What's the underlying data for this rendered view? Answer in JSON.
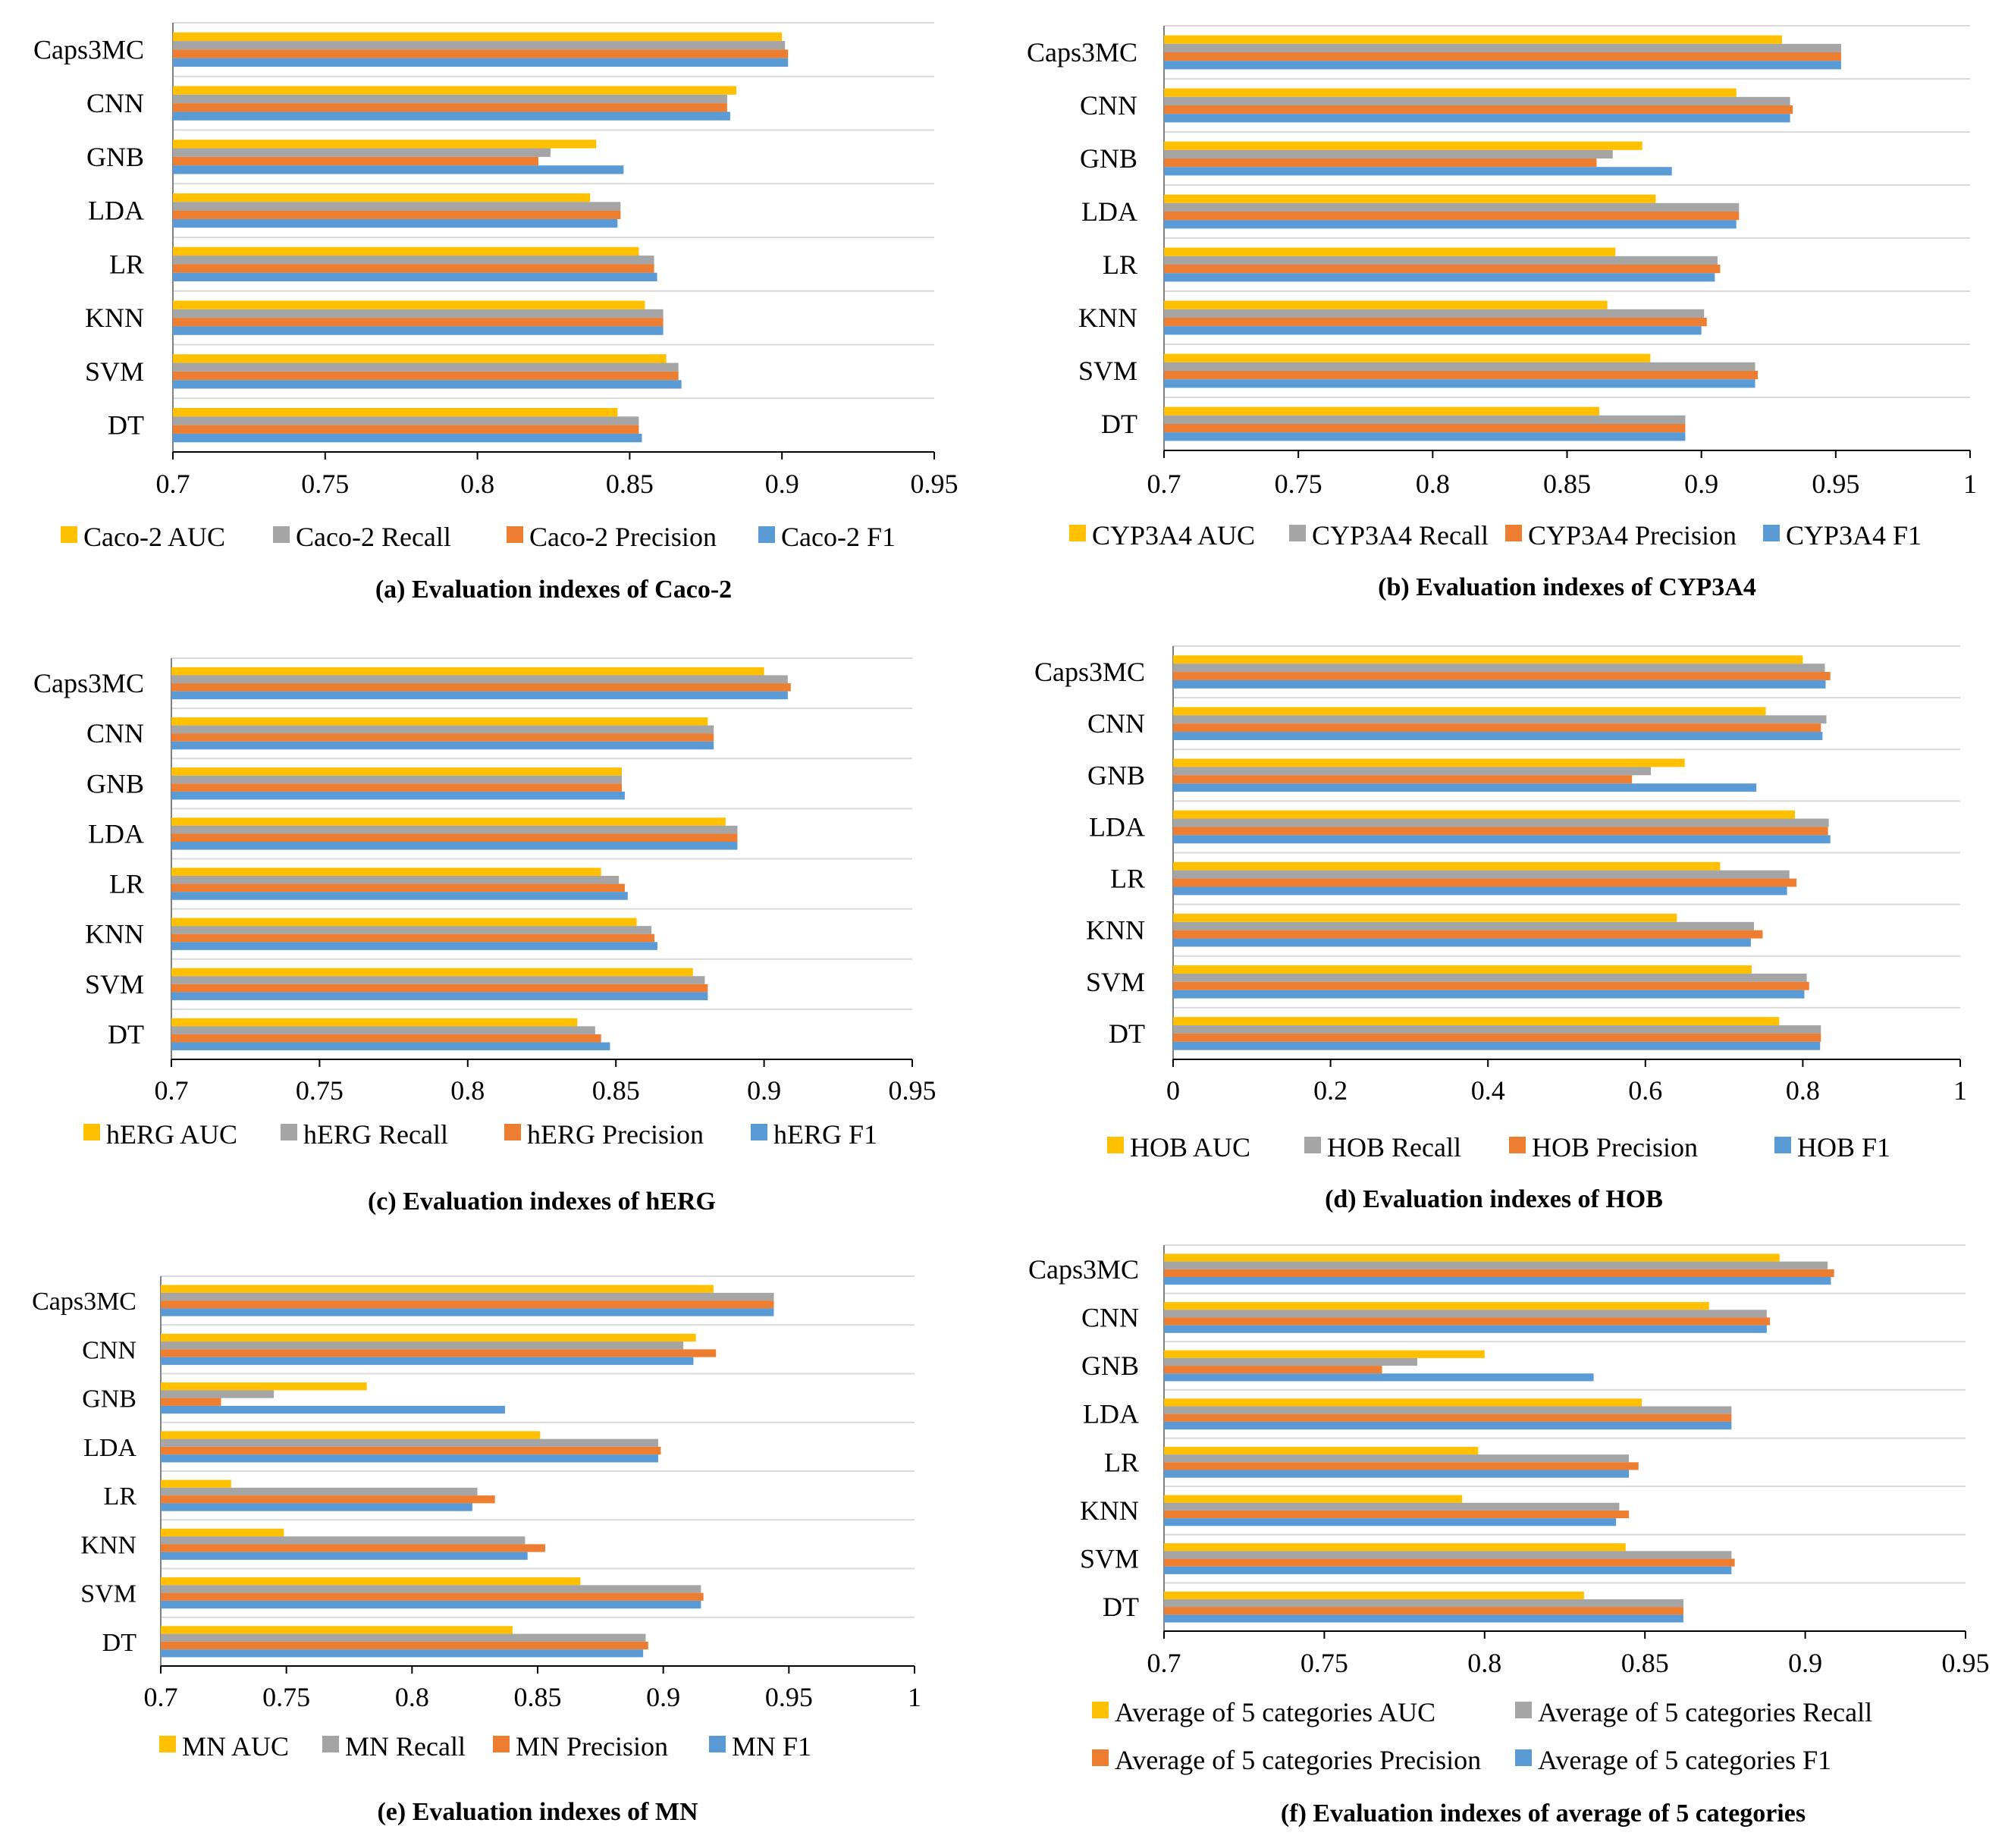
{
  "figure": {
    "colors": {
      "AUC": "#FFC000",
      "Recall": "#A5A5A5",
      "Precision": "#ED7D31",
      "F1": "#5B9BD5"
    },
    "metric_order": [
      "AUC",
      "Recall",
      "Precision",
      "F1"
    ]
  },
  "chart_data": [
    {
      "type": "bar",
      "orientation": "horizontal",
      "title": "(a) Evaluation indexes of Caco-2",
      "categories": [
        "Caps3MC",
        "CNN",
        "GNB",
        "LDA",
        "LR",
        "KNN",
        "SVM",
        "DT"
      ],
      "xlim": [
        0.7,
        0.95
      ],
      "xticks": [
        0.7,
        0.75,
        0.8,
        0.85,
        0.9,
        0.95
      ],
      "tick_labels": [
        "0.7",
        "0.75",
        "0.8",
        "0.85",
        "0.9",
        "0.95"
      ],
      "series": [
        {
          "name": "Caco-2 AUC",
          "values": [
            0.9,
            0.885,
            0.839,
            0.837,
            0.853,
            0.855,
            0.862,
            0.846
          ]
        },
        {
          "name": "Caco-2 Recall",
          "values": [
            0.901,
            0.882,
            0.824,
            0.847,
            0.858,
            0.861,
            0.866,
            0.853
          ]
        },
        {
          "name": "Caco-2 Precision",
          "values": [
            0.902,
            0.882,
            0.82,
            0.847,
            0.858,
            0.861,
            0.866,
            0.853
          ]
        },
        {
          "name": "Caco-2 F1",
          "values": [
            0.902,
            0.883,
            0.848,
            0.846,
            0.859,
            0.861,
            0.867,
            0.854
          ]
        }
      ],
      "legend_position": "bottom",
      "legend_rows": 1
    },
    {
      "type": "bar",
      "orientation": "horizontal",
      "title": "(b) Evaluation indexes of CYP3A4",
      "categories": [
        "Caps3MC",
        "CNN",
        "GNB",
        "LDA",
        "LR",
        "KNN",
        "SVM",
        "DT"
      ],
      "xlim": [
        0.7,
        1.0
      ],
      "xticks": [
        0.7,
        0.75,
        0.8,
        0.85,
        0.9,
        0.95,
        1.0
      ],
      "tick_labels": [
        "0.7",
        "0.75",
        "0.8",
        "0.85",
        "0.9",
        "0.95",
        "1"
      ],
      "series": [
        {
          "name": "CYP3A4 AUC",
          "values": [
            0.93,
            0.913,
            0.878,
            0.883,
            0.868,
            0.865,
            0.881,
            0.862
          ]
        },
        {
          "name": "CYP3A4 Recall",
          "values": [
            0.952,
            0.933,
            0.867,
            0.914,
            0.906,
            0.901,
            0.92,
            0.894
          ]
        },
        {
          "name": "CYP3A4 Precision",
          "values": [
            0.952,
            0.934,
            0.861,
            0.914,
            0.907,
            0.902,
            0.921,
            0.894
          ]
        },
        {
          "name": "CYP3A4 F1",
          "values": [
            0.952,
            0.933,
            0.889,
            0.913,
            0.905,
            0.9,
            0.92,
            0.894
          ]
        }
      ],
      "legend_position": "bottom",
      "legend_rows": 1
    },
    {
      "type": "bar",
      "orientation": "horizontal",
      "title": "(c) Evaluation indexes of hERG",
      "categories": [
        "Caps3MC",
        "CNN",
        "GNB",
        "LDA",
        "LR",
        "KNN",
        "SVM",
        "DT"
      ],
      "xlim": [
        0.7,
        0.95
      ],
      "xticks": [
        0.7,
        0.75,
        0.8,
        0.85,
        0.9,
        0.95
      ],
      "tick_labels": [
        "0.7",
        "0.75",
        "0.8",
        "0.85",
        "0.9",
        "0.95"
      ],
      "series": [
        {
          "name": "hERG AUC",
          "values": [
            0.9,
            0.881,
            0.852,
            0.887,
            0.845,
            0.857,
            0.876,
            0.837
          ]
        },
        {
          "name": "hERG Recall",
          "values": [
            0.908,
            0.883,
            0.852,
            0.891,
            0.851,
            0.862,
            0.88,
            0.843
          ]
        },
        {
          "name": "hERG Precision",
          "values": [
            0.909,
            0.883,
            0.852,
            0.891,
            0.853,
            0.863,
            0.881,
            0.845
          ]
        },
        {
          "name": "hERG F1",
          "values": [
            0.908,
            0.883,
            0.853,
            0.891,
            0.854,
            0.864,
            0.881,
            0.848
          ]
        }
      ],
      "legend_position": "bottom",
      "legend_rows": 1
    },
    {
      "type": "bar",
      "orientation": "horizontal",
      "title": "(d) Evaluation indexes of HOB",
      "categories": [
        "Caps3MC",
        "CNN",
        "GNB",
        "LDA",
        "LR",
        "KNN",
        "SVM",
        "DT"
      ],
      "xlim": [
        0,
        1.0
      ],
      "xticks": [
        0,
        0.2,
        0.4,
        0.6,
        0.8,
        1.0
      ],
      "tick_labels": [
        "0",
        "0.2",
        "0.4",
        "0.6",
        "0.8",
        "1"
      ],
      "series": [
        {
          "name": "HOB AUC",
          "values": [
            0.8,
            0.753,
            0.65,
            0.79,
            0.695,
            0.64,
            0.735,
            0.77
          ]
        },
        {
          "name": "HOB Recall",
          "values": [
            0.828,
            0.83,
            0.607,
            0.833,
            0.783,
            0.738,
            0.805,
            0.823
          ]
        },
        {
          "name": "HOB Precision",
          "values": [
            0.835,
            0.823,
            0.583,
            0.832,
            0.792,
            0.749,
            0.808,
            0.823
          ]
        },
        {
          "name": "HOB F1",
          "values": [
            0.829,
            0.825,
            0.741,
            0.835,
            0.78,
            0.734,
            0.802,
            0.822
          ]
        }
      ],
      "legend_position": "bottom",
      "legend_rows": 1
    },
    {
      "type": "bar",
      "orientation": "horizontal",
      "title": "(e) Evaluation indexes of MN",
      "categories": [
        "Caps3MC",
        "CNN",
        "GNB",
        "LDA",
        "LR",
        "KNN",
        "SVM",
        "DT"
      ],
      "xlim": [
        0.7,
        1.0
      ],
      "xticks": [
        0.7,
        0.75,
        0.8,
        0.85,
        0.9,
        0.95,
        1.0
      ],
      "tick_labels": [
        "0.7",
        "0.75",
        "0.8",
        "0.85",
        "0.9",
        "0.95",
        "1"
      ],
      "series": [
        {
          "name": "MN AUC",
          "values": [
            0.92,
            0.913,
            0.782,
            0.851,
            0.728,
            0.749,
            0.867,
            0.84
          ]
        },
        {
          "name": "MN Recall",
          "values": [
            0.944,
            0.908,
            0.745,
            0.898,
            0.826,
            0.845,
            0.915,
            0.893
          ]
        },
        {
          "name": "MN Precision",
          "values": [
            0.944,
            0.921,
            0.724,
            0.899,
            0.833,
            0.853,
            0.916,
            0.894
          ]
        },
        {
          "name": "MN F1",
          "values": [
            0.944,
            0.912,
            0.837,
            0.898,
            0.824,
            0.846,
            0.915,
            0.892
          ]
        }
      ],
      "legend_position": "bottom",
      "legend_rows": 1
    },
    {
      "type": "bar",
      "orientation": "horizontal",
      "title": "(f) Evaluation indexes of average of 5 categories",
      "categories": [
        "Caps3MC",
        "CNN",
        "GNB",
        "LDA",
        "LR",
        "KNN",
        "SVM",
        "DT"
      ],
      "xlim": [
        0.7,
        0.95
      ],
      "xticks": [
        0.7,
        0.75,
        0.8,
        0.85,
        0.9,
        0.95
      ],
      "tick_labels": [
        "0.7",
        "0.75",
        "0.8",
        "0.85",
        "0.9",
        "0.95"
      ],
      "series": [
        {
          "name": "Average of 5 categories AUC",
          "values": [
            0.892,
            0.87,
            0.8,
            0.849,
            0.798,
            0.793,
            0.844,
            0.831
          ]
        },
        {
          "name": "Average of 5 categories Recall",
          "values": [
            0.907,
            0.888,
            0.779,
            0.877,
            0.845,
            0.842,
            0.877,
            0.862
          ]
        },
        {
          "name": "Average of 5 categories Precision",
          "values": [
            0.909,
            0.889,
            0.768,
            0.877,
            0.848,
            0.845,
            0.878,
            0.862
          ]
        },
        {
          "name": "Average of 5 categories F1",
          "values": [
            0.908,
            0.888,
            0.834,
            0.877,
            0.845,
            0.841,
            0.877,
            0.862
          ]
        }
      ],
      "legend_position": "bottom",
      "legend_rows": 2
    }
  ]
}
